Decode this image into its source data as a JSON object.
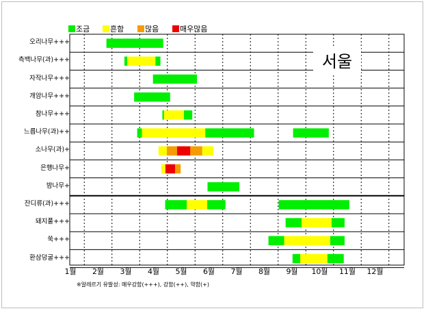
{
  "legend": [
    {
      "key": "low",
      "label": "조금",
      "color": "#00ee00"
    },
    {
      "key": "moderate",
      "label": "흔함",
      "color": "#ffff00"
    },
    {
      "key": "high",
      "label": "많음",
      "color": "#f59c00"
    },
    {
      "key": "very_high",
      "label": "매우많음",
      "color": "#ee0000"
    }
  ],
  "region_label": "서울",
  "footnote": "※알레르기 유발성: 매우강함(+++), 강함(++), 약함(+)",
  "chart_data": {
    "type": "gantt",
    "title": "",
    "xlabel": "",
    "ylabel": "",
    "x_unit": "month",
    "xlim": [
      1,
      13
    ],
    "categories": [
      "1월",
      "2월",
      "3월",
      "4월",
      "5월",
      "6월",
      "7월",
      "8월",
      "9월",
      "10월",
      "11월",
      "12월"
    ],
    "rows": [
      {
        "label": "오리나무+++",
        "segments": [
          {
            "start": 2.3,
            "end": 4.35,
            "level": "low"
          }
        ]
      },
      {
        "label": "측백나무(과)+++",
        "segments": [
          {
            "start": 2.95,
            "end": 3.05,
            "level": "low"
          },
          {
            "start": 3.05,
            "end": 4.07,
            "level": "moderate"
          },
          {
            "start": 4.07,
            "end": 4.25,
            "level": "low"
          }
        ]
      },
      {
        "label": "자작나무+++",
        "segments": [
          {
            "start": 3.98,
            "end": 5.57,
            "level": "low"
          }
        ]
      },
      {
        "label": "개암나무+++",
        "segments": [
          {
            "start": 3.3,
            "end": 4.6,
            "level": "low"
          }
        ]
      },
      {
        "label": "참나무+++",
        "segments": [
          {
            "start": 4.32,
            "end": 4.38,
            "level": "low"
          },
          {
            "start": 4.38,
            "end": 5.1,
            "level": "moderate"
          },
          {
            "start": 5.1,
            "end": 5.4,
            "level": "low"
          }
        ]
      },
      {
        "label": "느릅나무(과)++",
        "segments": [
          {
            "start": 3.41,
            "end": 3.58,
            "level": "low"
          },
          {
            "start": 3.58,
            "end": 5.87,
            "level": "moderate"
          },
          {
            "start": 5.87,
            "end": 7.63,
            "level": "low"
          },
          {
            "start": 9.04,
            "end": 10.33,
            "level": "low"
          }
        ]
      },
      {
        "label": "소나무(과)+",
        "segments": [
          {
            "start": 4.18,
            "end": 4.48,
            "level": "moderate"
          },
          {
            "start": 4.48,
            "end": 4.85,
            "level": "high"
          },
          {
            "start": 4.85,
            "end": 5.33,
            "level": "very_high"
          },
          {
            "start": 5.33,
            "end": 5.76,
            "level": "high"
          },
          {
            "start": 5.76,
            "end": 6.16,
            "level": "moderate"
          }
        ]
      },
      {
        "label": "은행나무+",
        "segments": [
          {
            "start": 4.28,
            "end": 4.43,
            "level": "moderate"
          },
          {
            "start": 4.43,
            "end": 4.78,
            "level": "very_high"
          },
          {
            "start": 4.78,
            "end": 4.98,
            "level": "high"
          }
        ]
      },
      {
        "label": "밤나무+",
        "segments": [
          {
            "start": 5.95,
            "end": 7.1,
            "level": "low"
          }
        ]
      },
      {
        "label": "잔디류(과)+++",
        "segments": [
          {
            "start": 4.42,
            "end": 5.2,
            "level": "low"
          },
          {
            "start": 5.2,
            "end": 5.94,
            "level": "moderate"
          },
          {
            "start": 5.94,
            "end": 6.6,
            "level": "low"
          },
          {
            "start": 8.52,
            "end": 11.07,
            "level": "low"
          }
        ]
      },
      {
        "label": "돼지풀+++",
        "segments": [
          {
            "start": 8.77,
            "end": 9.35,
            "level": "low"
          },
          {
            "start": 9.35,
            "end": 10.43,
            "level": "moderate"
          },
          {
            "start": 10.43,
            "end": 10.9,
            "level": "low"
          }
        ]
      },
      {
        "label": "쑥+++",
        "segments": [
          {
            "start": 8.15,
            "end": 8.72,
            "level": "low"
          },
          {
            "start": 8.72,
            "end": 10.38,
            "level": "moderate"
          },
          {
            "start": 10.38,
            "end": 10.9,
            "level": "low"
          }
        ]
      },
      {
        "label": "환삼덩굴+++",
        "segments": [
          {
            "start": 9.02,
            "end": 9.3,
            "level": "low"
          },
          {
            "start": 9.3,
            "end": 10.28,
            "level": "moderate"
          },
          {
            "start": 10.28,
            "end": 10.87,
            "level": "low"
          }
        ]
      }
    ],
    "grid": true,
    "legend_position": "top-left"
  }
}
